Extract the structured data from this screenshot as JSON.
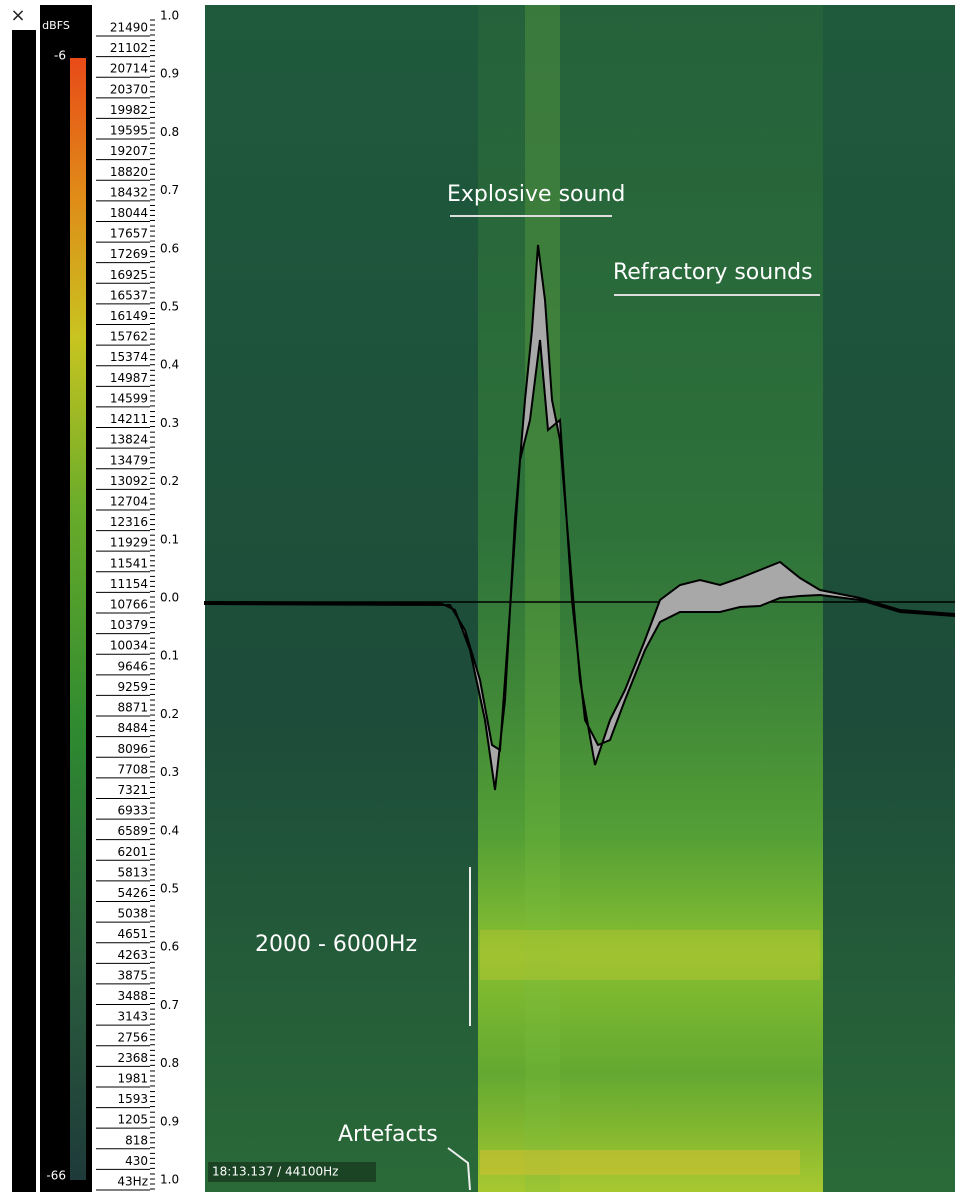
{
  "close": "×",
  "colorbar": {
    "unit": "dBFS",
    "max": "-6",
    "min": "-66"
  },
  "frequency_labels": [
    "21490",
    "21102",
    "20714",
    "20370",
    "19982",
    "19595",
    "19207",
    "18820",
    "18432",
    "18044",
    "17657",
    "17269",
    "16925",
    "16537",
    "16149",
    "15762",
    "15374",
    "14987",
    "14599",
    "14211",
    "13824",
    "13479",
    "13092",
    "12704",
    "12316",
    "11929",
    "11541",
    "11154",
    "10766",
    "10379",
    "10034",
    "9646",
    "9259",
    "8871",
    "8484",
    "8096",
    "7708",
    "7321",
    "6933",
    "6589",
    "6201",
    "5813",
    "5426",
    "5038",
    "4651",
    "4263",
    "3875",
    "3488",
    "3143",
    "2756",
    "2368",
    "1981",
    "1593",
    "1205",
    "818",
    "430",
    "43Hz"
  ],
  "amplitude_labels": [
    "1.0",
    "0.9",
    "0.8",
    "0.7",
    "0.6",
    "0.5",
    "0.4",
    "0.3",
    "0.2",
    "0.1",
    "0.0",
    "0.1",
    "0.2",
    "0.3",
    "0.4",
    "0.5",
    "0.6",
    "0.7",
    "0.8",
    "0.9",
    "1.0"
  ],
  "annotations": {
    "explosive": "Explosive sound",
    "refractory": "Refractory sounds",
    "band": "2000 - 6000Hz",
    "artefacts": "Artefacts"
  },
  "status": "18:13.137 / 44100Hz"
}
